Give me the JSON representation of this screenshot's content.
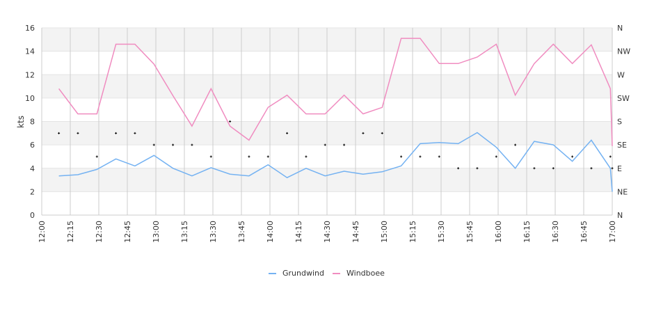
{
  "chart_data": {
    "type": "line",
    "title": "",
    "xlabel": "",
    "ylabel": "kts",
    "ylim": [
      0,
      16
    ],
    "xlim": [
      "12:00",
      "17:00"
    ],
    "grid": true,
    "legend_position": "bottom",
    "y_ticks": [
      "0",
      "2",
      "4",
      "6",
      "8",
      "10",
      "12",
      "14",
      "16"
    ],
    "y2_ticks": [
      "N",
      "NE",
      "E",
      "SE",
      "S",
      "SW",
      "W",
      "NW",
      "N"
    ],
    "y2_range_degrees": [
      0,
      360
    ],
    "x_ticks": [
      "12:00",
      "12:15",
      "12:30",
      "12:45",
      "13:00",
      "13:15",
      "13:30",
      "13:45",
      "14:00",
      "14:15",
      "14:30",
      "14:45",
      "15:00",
      "15:15",
      "15:30",
      "15:45",
      "16:00",
      "16:15",
      "16:30",
      "16:45",
      "17:00"
    ],
    "x": [
      "12:09",
      "12:19",
      "12:29",
      "12:39",
      "12:49",
      "12:59",
      "13:09",
      "13:19",
      "13:29",
      "13:39",
      "13:49",
      "13:59",
      "14:09",
      "14:19",
      "14:29",
      "14:39",
      "14:49",
      "14:59",
      "15:09",
      "15:19",
      "15:29",
      "15:39",
      "15:49",
      "15:59",
      "16:09",
      "16:19",
      "16:29",
      "16:39",
      "16:49",
      "16:59",
      "17:00"
    ],
    "series": [
      {
        "name": "Grundwind",
        "color": "#74b2f2",
        "values": [
          3.35,
          3.45,
          3.9,
          4.8,
          4.2,
          5.1,
          4.0,
          3.35,
          4.05,
          3.5,
          3.35,
          4.3,
          3.2,
          4.0,
          3.35,
          3.75,
          3.5,
          3.7,
          4.2,
          6.1,
          6.2,
          6.1,
          7.05,
          5.8,
          4.0,
          6.3,
          6.0,
          4.6,
          6.4,
          4.0,
          2.0
        ]
      },
      {
        "name": "Windboee",
        "color": "#f08cc0",
        "values": [
          10.8,
          8.65,
          8.65,
          14.6,
          14.6,
          12.9,
          10.2,
          7.6,
          10.8,
          7.6,
          6.4,
          9.2,
          10.25,
          8.65,
          8.65,
          10.25,
          8.65,
          9.2,
          15.1,
          15.1,
          12.95,
          12.95,
          13.5,
          14.6,
          10.25,
          12.95,
          14.6,
          12.95,
          14.55,
          10.8,
          5.9
        ]
      }
    ],
    "direction_degrees": [
      157.5,
      157.5,
      112.5,
      157.5,
      157.5,
      135,
      135,
      135,
      112.5,
      180,
      112.5,
      112.5,
      157.5,
      112.5,
      135,
      135,
      157.5,
      157.5,
      112.5,
      112.5,
      112.5,
      90,
      90,
      112.5,
      135,
      90,
      90,
      112.5,
      90,
      112.5,
      90
    ],
    "direction_marker_color": "#000000",
    "band_color": "#f3f3f3",
    "grid_color": "#cccccc"
  }
}
